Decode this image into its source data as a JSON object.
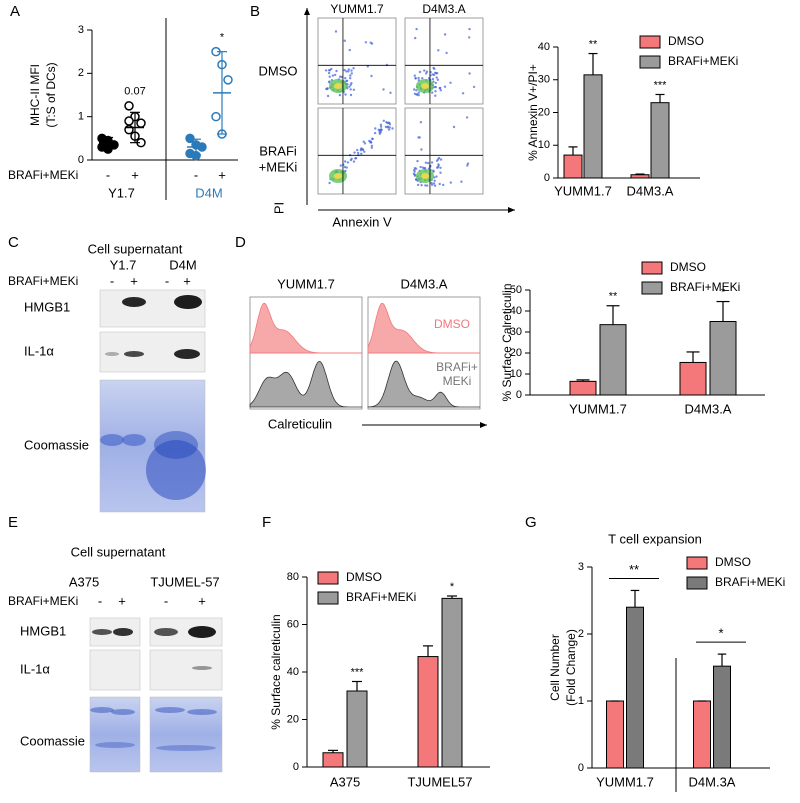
{
  "chart_data": [
    {
      "type": "dot",
      "panel": "A",
      "ylabel": [
        "MHC-II MFI",
        "(T:S of DCs)"
      ],
      "categories": [
        "-",
        "+",
        "-",
        "+"
      ],
      "row_label": "BRAFi+MEKi",
      "group_labels": [
        "Y1.7",
        "D4M"
      ],
      "group_label_colors": [
        "#000000",
        "#2b7bba"
      ],
      "colors": [
        "#000000",
        "#000000",
        "#2b7bba",
        "#2b7bba"
      ],
      "filled": [
        true,
        false,
        true,
        false
      ],
      "points": [
        [
          0.5,
          0.45,
          0.35,
          0.3,
          0.25
        ],
        [
          1.25,
          1.0,
          0.85,
          0.7,
          0.55,
          0.4,
          0.9
        ],
        [
          0.5,
          0.35,
          0.3,
          0.15,
          0.1
        ],
        [
          2.5,
          2.2,
          1.85,
          1.0,
          0.6
        ]
      ],
      "means": [
        0.4,
        0.75,
        0.3,
        1.55
      ],
      "errors": [
        0.12,
        0.35,
        0.18,
        0.95
      ],
      "annotations": [
        null,
        "0.07",
        null,
        "*"
      ],
      "ylim": [
        0,
        3
      ],
      "yticks": [
        0,
        1,
        2,
        3
      ]
    },
    {
      "type": "bar",
      "ylabel": [
        "% Annexin V+/PI+"
      ],
      "categories": [
        "YUMM1.7",
        "D4M3.A"
      ],
      "series": [
        {
          "name": "DMSO",
          "color": "#f4777a",
          "values": [
            7,
            1
          ],
          "errors": [
            2.5,
            0.2
          ]
        },
        {
          "name": "BRAFi+MEKi",
          "color": "#9b9b9b",
          "values": [
            31.5,
            23
          ],
          "errors": [
            6.5,
            2.5
          ]
        }
      ],
      "annotations": [
        "**",
        "***"
      ],
      "ylim": [
        0,
        40
      ],
      "yticks": [
        0,
        10,
        20,
        30,
        40
      ]
    },
    {
      "type": "bar",
      "ylabel": [
        "% Surface Calreticulin"
      ],
      "categories": [
        "YUMM1.7",
        "D4M3.A"
      ],
      "series": [
        {
          "name": "DMSO",
          "color": "#f4777a",
          "values": [
            6.5,
            15.5
          ],
          "errors": [
            0.7,
            5
          ]
        },
        {
          "name": "BRAFi+MEKi",
          "color": "#9b9b9b",
          "values": [
            33.5,
            35
          ],
          "errors": [
            9,
            9.5
          ]
        }
      ],
      "annotations": [
        "**",
        "*"
      ],
      "ylim": [
        0,
        50
      ],
      "yticks": [
        0,
        10,
        20,
        30,
        40,
        50
      ]
    },
    {
      "type": "bar",
      "panel": "F",
      "ylabel": [
        "% Surface calreticulin"
      ],
      "categories": [
        "A375",
        "TJUMEL57"
      ],
      "series": [
        {
          "name": "DMSO",
          "color": "#f4777a",
          "values": [
            6,
            46.5
          ],
          "errors": [
            1,
            4.5
          ]
        },
        {
          "name": "BRAFi+MEKi",
          "color": "#9b9b9b",
          "values": [
            32,
            71
          ],
          "errors": [
            4,
            1
          ]
        }
      ],
      "annotations": [
        "***",
        "*"
      ],
      "ylim": [
        0,
        80
      ],
      "yticks": [
        0,
        20,
        40,
        60,
        80
      ]
    },
    {
      "type": "bar",
      "panel": "G",
      "title": "T cell expansion",
      "ylabel": [
        "Cell Number",
        "(Fold Change)"
      ],
      "categories": [
        "YUMM1.7",
        "D4M.3A"
      ],
      "series": [
        {
          "name": "DMSO",
          "color": "#f4777a",
          "values": [
            1,
            1
          ],
          "errors": [
            0,
            0
          ]
        },
        {
          "name": "BRAFi+MEKi",
          "color": "#7a7a7a",
          "values": [
            2.4,
            1.52
          ],
          "errors": [
            0.25,
            0.18
          ]
        }
      ],
      "annotations": [
        "**",
        "*"
      ],
      "annotation_style": "bracket",
      "ylim": [
        0,
        3
      ],
      "yticks": [
        0,
        1,
        2,
        3
      ]
    }
  ],
  "flow_cytometry": [
    {
      "panel": "B",
      "column_labels": [
        "YUMM1.7",
        "D4M3.A"
      ],
      "row_labels": [
        [
          "DMSO"
        ],
        [
          "BRAFi",
          "+MEKi"
        ]
      ],
      "y_axis": "PI",
      "x_axis": "Annexin V"
    },
    {
      "panel": "D",
      "column_labels": [
        "YUMM1.7",
        "D4M3.A"
      ],
      "legend": [
        "DMSO",
        "BRAFi+",
        "MEKi"
      ],
      "x_axis": "Calreticulin"
    }
  ],
  "blots": [
    {
      "panel": "C",
      "title": "Cell supernatant",
      "treatment_label": "BRAFi+MEKi",
      "groups": [
        "Y1.7",
        "D4M"
      ],
      "lanes": [
        "-",
        "+",
        "-",
        "+"
      ],
      "rows": [
        "HMGB1",
        "IL-1α",
        "Coomassie"
      ]
    },
    {
      "panel": "E",
      "title": "Cell supernatant",
      "treatment_label": "BRAFi+MEKi",
      "groups": [
        "A375",
        "TJUMEL-57"
      ],
      "lanes": [
        "-",
        "+",
        "-",
        "+"
      ],
      "rows": [
        "HMGB1",
        "IL-1α",
        "Coomassie"
      ]
    }
  ]
}
